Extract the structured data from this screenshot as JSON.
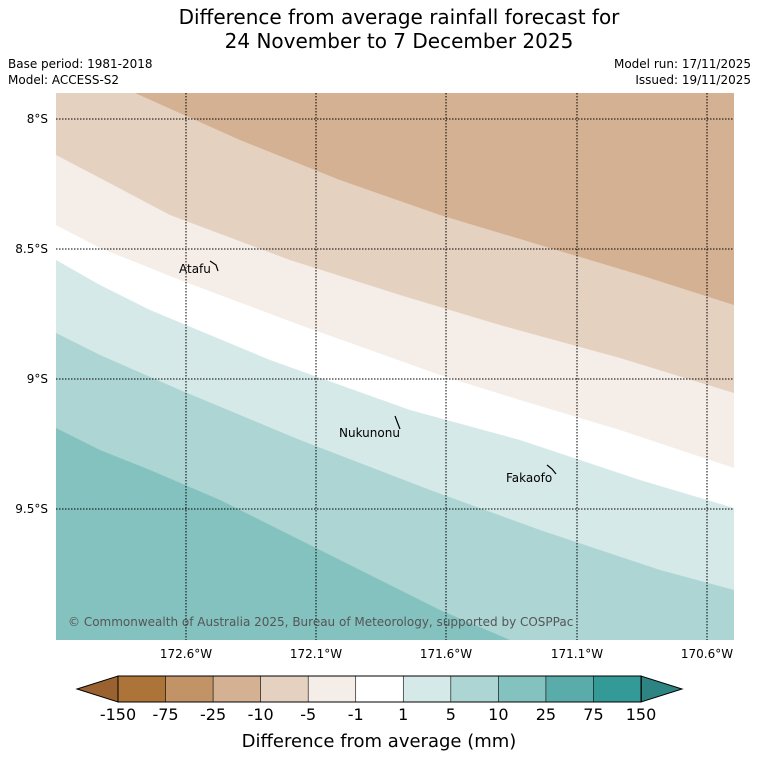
{
  "title": {
    "line1": "Difference from average rainfall forecast for",
    "line2": "24 November to 7 December 2025"
  },
  "meta": {
    "base_period": "Base period: 1981-2018",
    "model": "Model: ACCESS-S2",
    "model_run": "Model run: 17/11/2025",
    "issued": "Issued: 19/11/2025"
  },
  "map": {
    "lat_labels": [
      "8°S",
      "8.5°S",
      "9°S",
      "9.5°S"
    ],
    "lon_labels": [
      "172.6°W",
      "172.1°W",
      "171.6°W",
      "171.1°W",
      "170.6°W"
    ],
    "places": [
      "Atafu",
      "Nukunonu",
      "Fakaofo"
    ],
    "copyright": "© Commonwealth of Australia 2025, Bureau of Meteorology, supported by COSPPac"
  },
  "colorbar": {
    "ticks": [
      "-150",
      "-75",
      "-25",
      "-10",
      "-5",
      "-1",
      "1",
      "5",
      "10",
      "25",
      "75",
      "150"
    ],
    "colors": [
      "#ad7439",
      "#c29367",
      "#d3b192",
      "#e5d1c0",
      "#f5ede7",
      "#ffffff",
      "#d5e9e8",
      "#acd5d4",
      "#84c2c0",
      "#5aacab",
      "#349a98"
    ],
    "under_color": "#9a6230",
    "over_color": "#2d8482",
    "title": "Difference from average (mm)"
  }
}
